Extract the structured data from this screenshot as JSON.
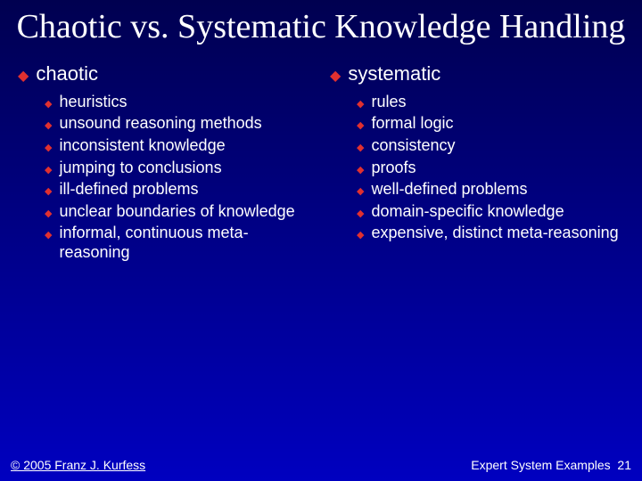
{
  "slide": {
    "title": "Chaotic vs. Systematic Knowledge Handling",
    "title_color": "#ffffff",
    "title_font_family": "Times New Roman",
    "title_font_size_pt": 38,
    "background_gradient": [
      "#000050",
      "#000088",
      "#0000c0"
    ],
    "bullet_diamond_color": "#e03030",
    "body_text_color": "#ffffff",
    "body_font_family": "Arial",
    "header_font_size_pt": 22,
    "item_font_size_pt": 18,
    "columns": [
      {
        "header": "chaotic",
        "items": [
          "heuristics",
          "unsound reasoning methods",
          "inconsistent knowledge",
          "jumping to conclusions",
          "ill-defined problems",
          "unclear boundaries of knowledge",
          "informal, continuous meta-reasoning"
        ]
      },
      {
        "header": "systematic",
        "items": [
          "rules",
          "formal logic",
          "consistency",
          "proofs",
          "well-defined problems",
          "domain-specific knowledge",
          "expensive, distinct meta-reasoning"
        ]
      }
    ],
    "footer_left": "© 2005 Franz J. Kurfess",
    "footer_right_label": "Expert System Examples",
    "footer_right_page": "21",
    "footer_font_size_pt": 14
  }
}
